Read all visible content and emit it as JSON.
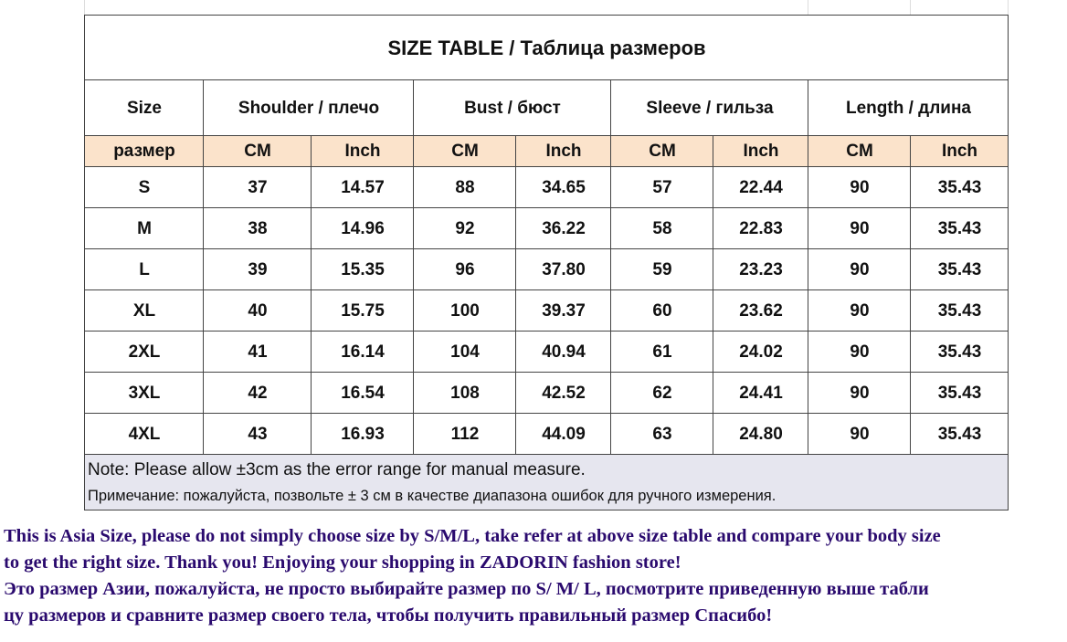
{
  "title": "SIZE TABLE  / Таблица размеров",
  "headers": [
    "Size",
    "Shoulder / плечо",
    "Bust / бюст",
    "Sleeve / гильза",
    "Length / длина"
  ],
  "subheaders": [
    "размер",
    "CM",
    "Inch",
    "CM",
    "Inch",
    "CM",
    "Inch",
    "CM",
    "Inch"
  ],
  "rows": [
    [
      "S",
      "37",
      "14.57",
      "88",
      "34.65",
      "57",
      "22.44",
      "90",
      "35.43"
    ],
    [
      "M",
      "38",
      "14.96",
      "92",
      "36.22",
      "58",
      "22.83",
      "90",
      "35.43"
    ],
    [
      "L",
      "39",
      "15.35",
      "96",
      "37.80",
      "59",
      "23.23",
      "90",
      "35.43"
    ],
    [
      "XL",
      "40",
      "15.75",
      "100",
      "39.37",
      "60",
      "23.62",
      "90",
      "35.43"
    ],
    [
      "2XL",
      "41",
      "16.14",
      "104",
      "40.94",
      "61",
      "24.02",
      "90",
      "35.43"
    ],
    [
      "3XL",
      "42",
      "16.54",
      "108",
      "42.52",
      "62",
      "24.41",
      "90",
      "35.43"
    ],
    [
      "4XL",
      "43",
      "16.93",
      "112",
      "44.09",
      "63",
      "24.80",
      "90",
      "35.43"
    ]
  ],
  "notes": [
    "Note: Please allow ±3cm as the error range for manual measure.",
    "Примечание: пожалуйста, позвольте ± 3 см в качестве диапазона ошибок для ручного измерения."
  ],
  "footer": [
    "This is Asia Size, please do not simply choose size by S/M/L, take refer at above size table and compare your body size",
    "to get the right size. Thank you!  Enjoying your shopping in ZADORIN fashion store!",
    "Это размер Азии, пожалуйста, не просто выбирайте размер по S/ M/ L, посмотрите приведенную выше табли",
    "цу размеров и сравните размер своего тела, чтобы получить правильный размер Спасибо!"
  ]
}
